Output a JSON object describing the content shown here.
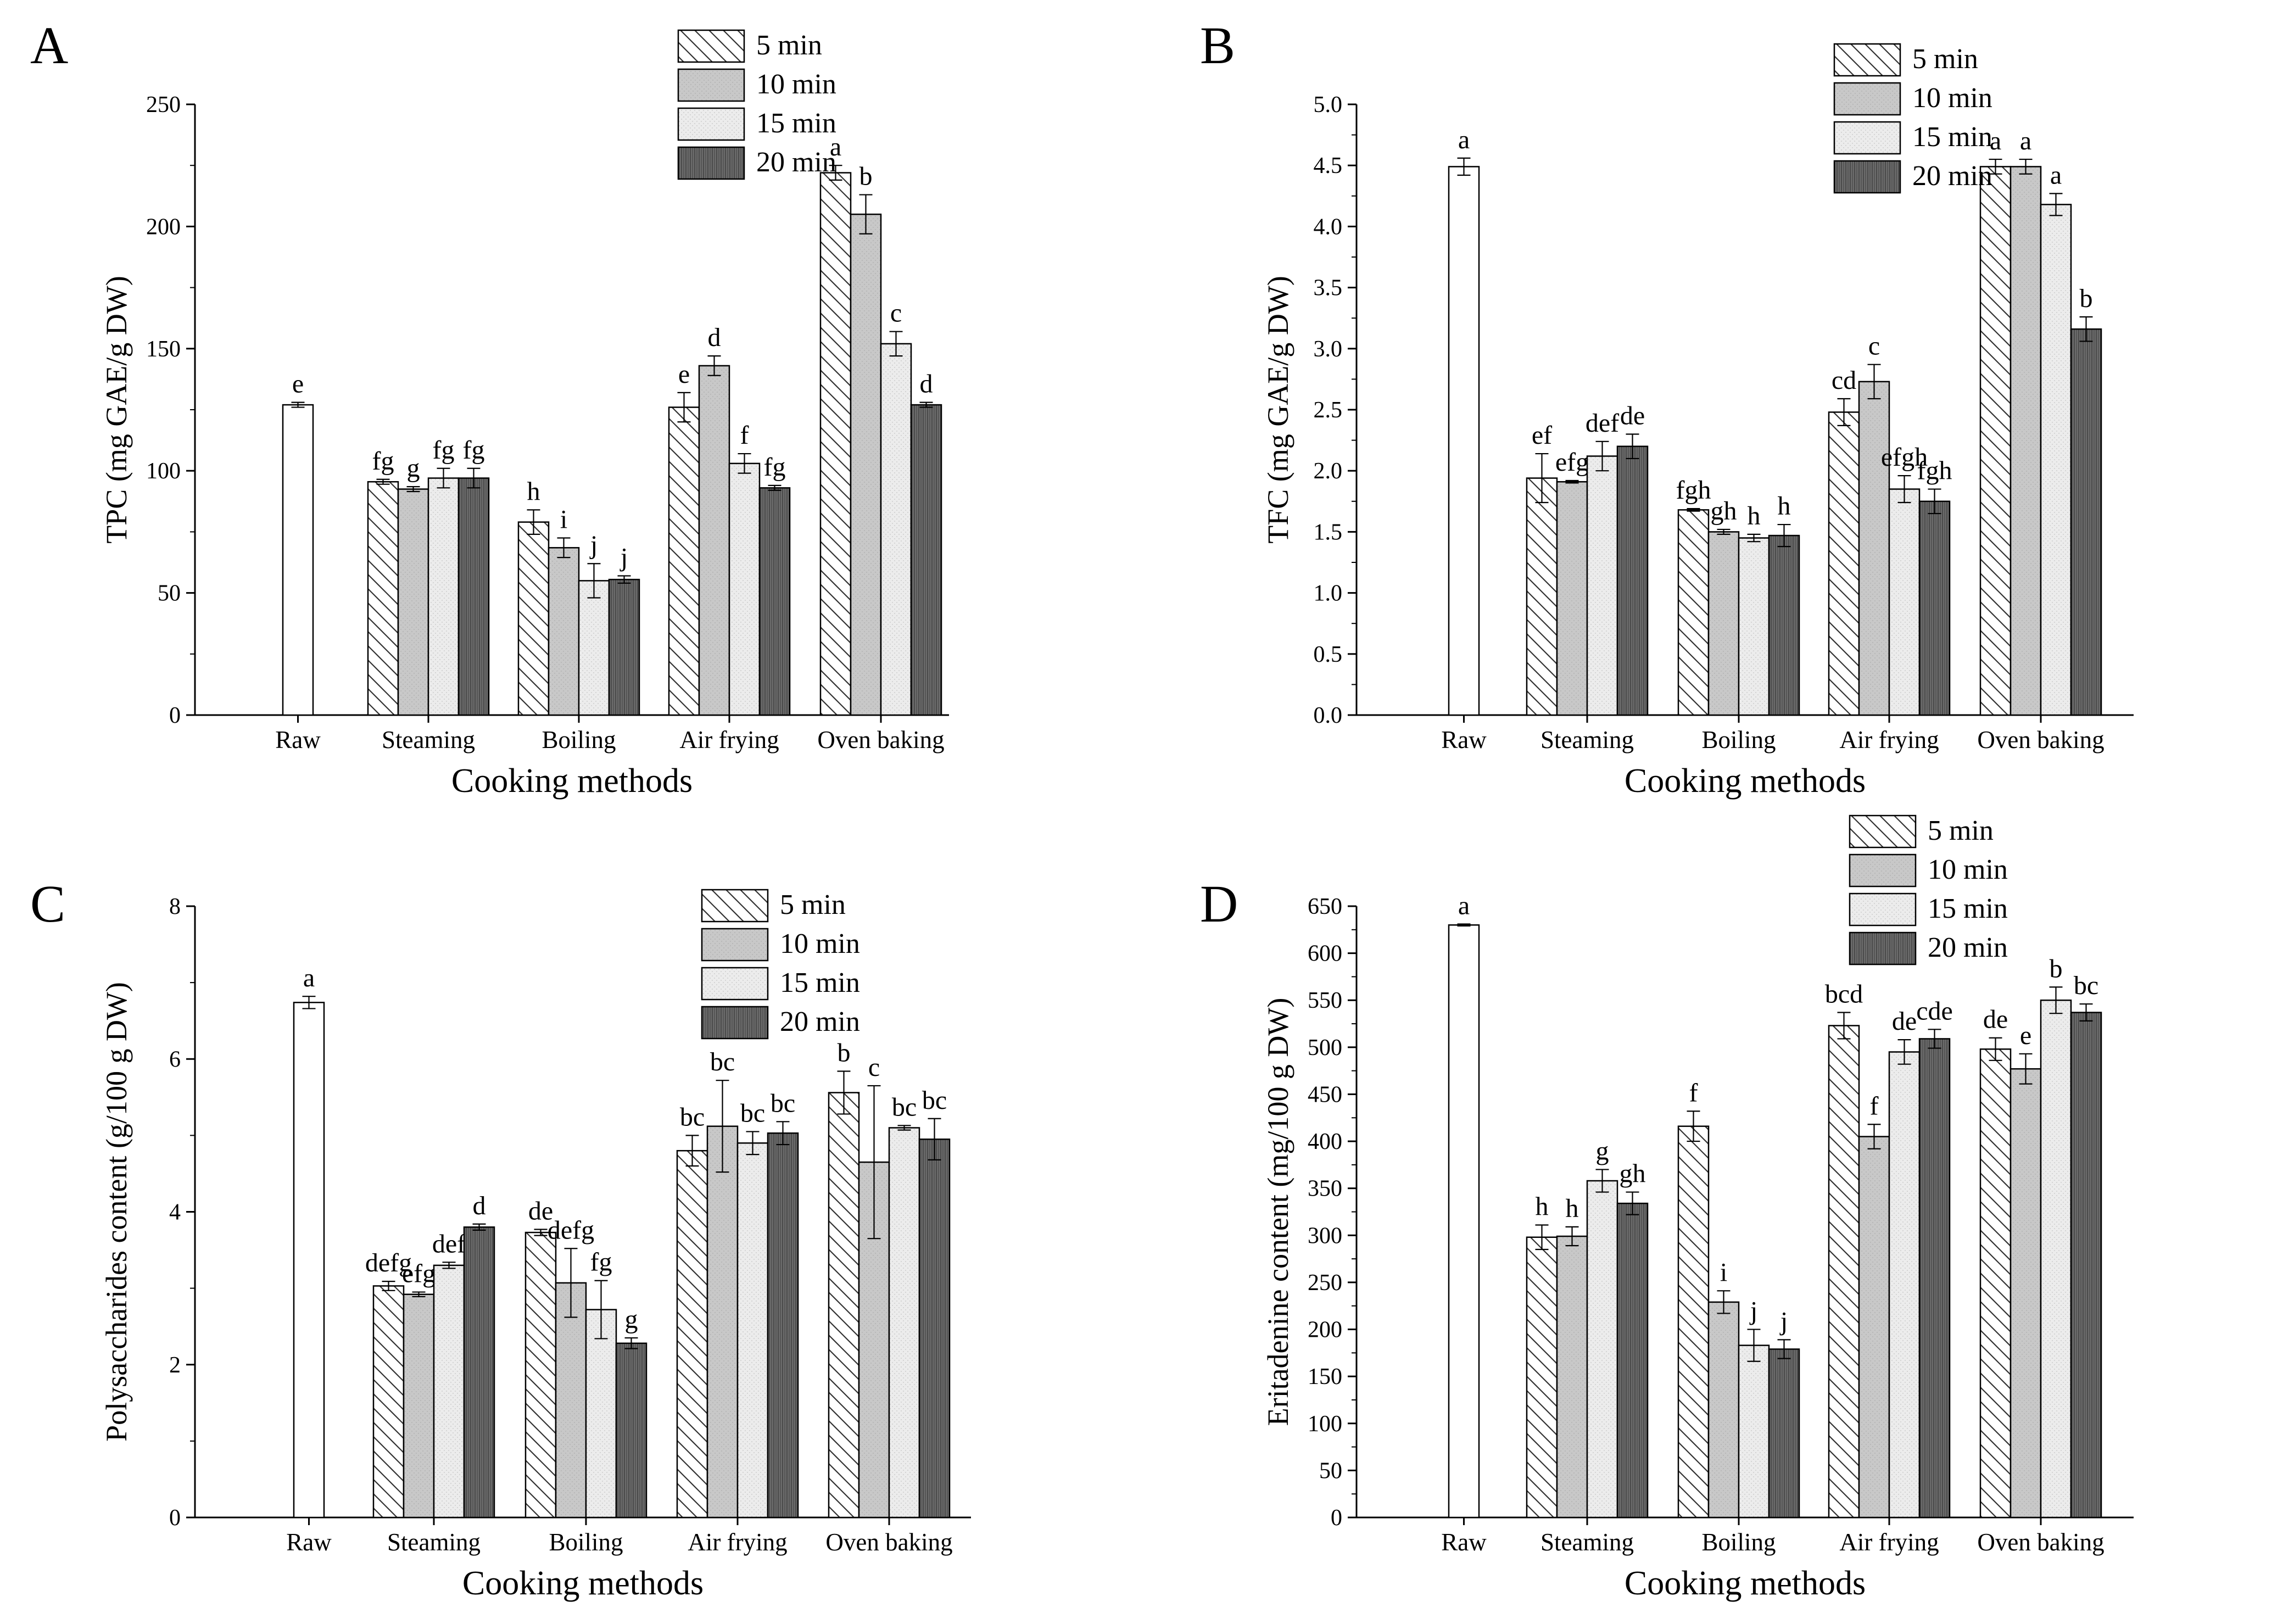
{
  "patterns": [
    "diag",
    "gray",
    "dots",
    "dark"
  ],
  "chart_data": [
    {
      "id": "A",
      "letter": "A",
      "type": "bar",
      "ylabel": "TPC (mg GAE/g DW)",
      "xlabel": "Cooking methods",
      "ylim": [
        0,
        250
      ],
      "ystep": 50,
      "ytick_labels": [
        "0",
        "50",
        "100",
        "150",
        "200",
        "250"
      ],
      "categories": [
        "Raw",
        "Steaming",
        "Boiling",
        "Air frying",
        "Oven baking"
      ],
      "legend": [
        "5 min",
        "10 min",
        "15 min",
        "20 min"
      ],
      "raw": {
        "value": 127,
        "err": 1,
        "label": "e"
      },
      "groups": [
        {
          "values": [
            95.5,
            92.5,
            97,
            97
          ],
          "errs": [
            1,
            1,
            4,
            4
          ],
          "labels": [
            "fg",
            "g",
            "fg",
            "fg"
          ]
        },
        {
          "values": [
            79,
            68.5,
            55,
            55.5
          ],
          "errs": [
            5,
            4,
            7,
            1.5
          ],
          "labels": [
            "h",
            "i",
            "j",
            "j"
          ]
        },
        {
          "values": [
            126,
            143,
            103,
            93
          ],
          "errs": [
            6,
            4,
            4,
            1
          ],
          "labels": [
            "e",
            "d",
            "f",
            "fg"
          ]
        },
        {
          "values": [
            222,
            205,
            152,
            127
          ],
          "errs": [
            3,
            8,
            5,
            1
          ],
          "labels": [
            "a",
            "b",
            "c",
            "d"
          ]
        }
      ]
    },
    {
      "id": "B",
      "letter": "B",
      "type": "bar",
      "ylabel": "TFC (mg GAE/g DW)",
      "xlabel": "Cooking methods",
      "ylim": [
        0,
        5
      ],
      "ystep": 0.5,
      "ytick_labels": [
        "0.0",
        "0.5",
        "1.0",
        "1.5",
        "2.0",
        "2.5",
        "3.0",
        "3.5",
        "4.0",
        "4.5",
        "5.0"
      ],
      "categories": [
        "Raw",
        "Steaming",
        "Boiling",
        "Air frying",
        "Oven baking"
      ],
      "legend": [
        "5 min",
        "10 min",
        "15 min",
        "20 min"
      ],
      "raw": {
        "value": 4.49,
        "err": 0.07,
        "label": "a"
      },
      "groups": [
        {
          "values": [
            1.94,
            1.91,
            2.12,
            2.2
          ],
          "errs": [
            0.2,
            0.01,
            0.12,
            0.1
          ],
          "labels": [
            "ef",
            "efg",
            "def",
            "de"
          ]
        },
        {
          "values": [
            1.68,
            1.5,
            1.45,
            1.47
          ],
          "errs": [
            0.01,
            0.02,
            0.03,
            0.09
          ],
          "labels": [
            "fgh",
            "gh",
            "h",
            "h"
          ]
        },
        {
          "values": [
            2.48,
            2.73,
            1.85,
            1.75
          ],
          "errs": [
            0.11,
            0.14,
            0.11,
            0.1
          ],
          "labels": [
            "cd",
            "c",
            "efgh",
            "fgh"
          ]
        },
        {
          "values": [
            4.49,
            4.49,
            4.18,
            3.16
          ],
          "errs": [
            0.06,
            0.06,
            0.09,
            0.1
          ],
          "labels": [
            "a",
            "a",
            "a",
            "b"
          ]
        }
      ]
    },
    {
      "id": "C",
      "letter": "C",
      "type": "bar",
      "ylabel": "Polysaccharides content (g/100 g DW)",
      "xlabel": "Cooking methods",
      "ylim": [
        0,
        8
      ],
      "ystep": 2,
      "ytick_labels": [
        "0",
        "2",
        "4",
        "6",
        "8"
      ],
      "categories": [
        "Raw",
        "Steaming",
        "Boiling",
        "Air frying",
        "Oven baking"
      ],
      "legend": [
        "5 min",
        "10 min",
        "15 min",
        "20 min"
      ],
      "raw": {
        "value": 6.74,
        "err": 0.08,
        "label": "a"
      },
      "groups": [
        {
          "values": [
            3.03,
            2.92,
            3.3,
            3.8
          ],
          "errs": [
            0.06,
            0.03,
            0.04,
            0.04
          ],
          "labels": [
            "defg",
            "efg",
            "def",
            "d"
          ]
        },
        {
          "values": [
            3.73,
            3.07,
            2.72,
            2.28
          ],
          "errs": [
            0.04,
            0.45,
            0.38,
            0.07
          ],
          "labels": [
            "de",
            "defg",
            "fg",
            "g"
          ]
        },
        {
          "values": [
            4.8,
            5.12,
            4.9,
            5.03
          ],
          "errs": [
            0.2,
            0.6,
            0.15,
            0.15
          ],
          "labels": [
            "bc",
            "bc",
            "bc",
            "bc"
          ]
        },
        {
          "values": [
            5.56,
            4.65,
            5.1,
            4.95
          ],
          "errs": [
            0.28,
            1.0,
            0.03,
            0.27
          ],
          "labels": [
            "b",
            "c",
            "bc",
            "bc"
          ]
        }
      ]
    },
    {
      "id": "D",
      "letter": "D",
      "type": "bar",
      "ylabel": "Eritadenine content (mg/100 g DW)",
      "xlabel": "Cooking methods",
      "ylim": [
        0,
        650
      ],
      "ystep": 50,
      "ytick_labels": [
        "0",
        "50",
        "100",
        "150",
        "200",
        "250",
        "300",
        "350",
        "400",
        "450",
        "500",
        "550",
        "600",
        "650"
      ],
      "categories": [
        "Raw",
        "Steaming",
        "Boiling",
        "Air frying",
        "Oven baking"
      ],
      "legend": [
        "5 min",
        "10 min",
        "15 min",
        "20 min"
      ],
      "raw": {
        "value": 630,
        "err": 1,
        "label": "a"
      },
      "groups": [
        {
          "values": [
            298,
            299,
            358,
            334
          ],
          "errs": [
            13,
            10,
            12,
            12
          ],
          "labels": [
            "h",
            "h",
            "g",
            "gh"
          ]
        },
        {
          "values": [
            416,
            229,
            183,
            179
          ],
          "errs": [
            16,
            12,
            17,
            10
          ],
          "labels": [
            "f",
            "i",
            "j",
            "j"
          ]
        },
        {
          "values": [
            523,
            405,
            495,
            509
          ],
          "errs": [
            14,
            13,
            13,
            10
          ],
          "labels": [
            "bcd",
            "f",
            "de",
            "cde"
          ]
        },
        {
          "values": [
            498,
            477,
            550,
            537
          ],
          "errs": [
            12,
            16,
            14,
            9
          ],
          "labels": [
            "de",
            "e",
            "b",
            "bc"
          ]
        }
      ]
    }
  ]
}
